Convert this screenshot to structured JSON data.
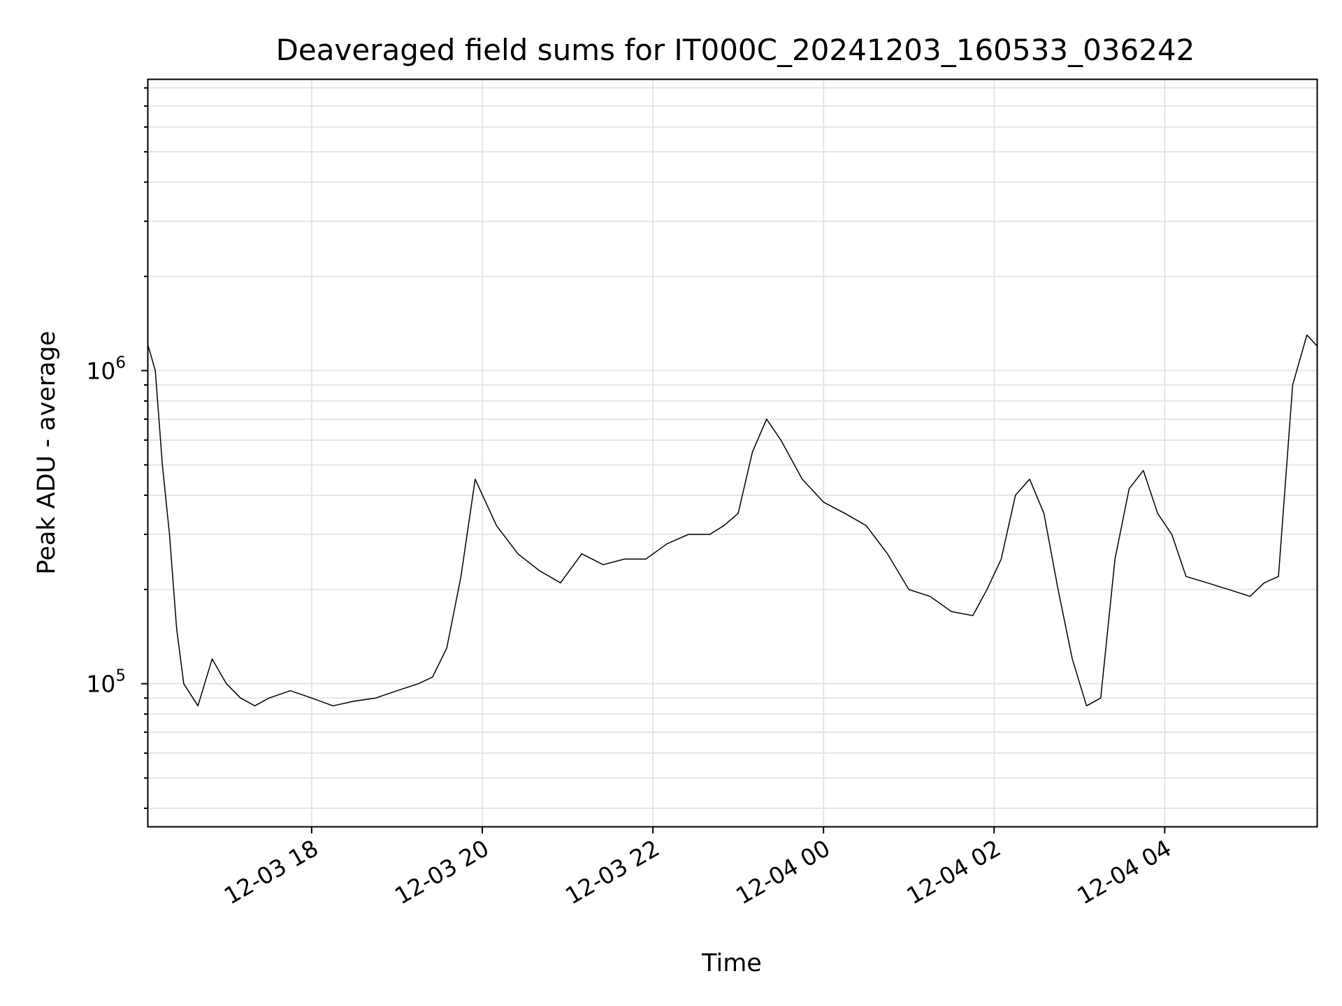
{
  "chart_data": {
    "type": "line",
    "title": "Deaveraged field sums for IT000C_20241203_160533_036242",
    "xlabel": "Time",
    "ylabel": "Peak ADU - average",
    "yscale": "log",
    "grid": true,
    "line_color": "#000000",
    "grid_color": "#e5e5e5",
    "xlim": [
      "2024-12-03 16:05",
      "2024-12-04 05:47"
    ],
    "ylim": [
      35000,
      8500000
    ],
    "x_ticks": [
      {
        "t": "2024-12-03 18:00",
        "label": "12-03 18"
      },
      {
        "t": "2024-12-03 20:00",
        "label": "12-03 20"
      },
      {
        "t": "2024-12-03 22:00",
        "label": "12-03 22"
      },
      {
        "t": "2024-12-04 00:00",
        "label": "12-04 00"
      },
      {
        "t": "2024-12-04 02:00",
        "label": "12-04 02"
      },
      {
        "t": "2024-12-04 04:00",
        "label": "12-04 04"
      }
    ],
    "y_ticks": [
      {
        "value": 100000,
        "base": "10",
        "exp": "5"
      },
      {
        "value": 1000000,
        "base": "10",
        "exp": "6"
      }
    ],
    "series": [
      {
        "x": [
          "2024-12-03 16:05",
          "2024-12-03 16:10",
          "2024-12-03 16:15",
          "2024-12-03 16:20",
          "2024-12-03 16:25",
          "2024-12-03 16:30",
          "2024-12-03 16:40",
          "2024-12-03 16:50",
          "2024-12-03 17:00",
          "2024-12-03 17:10",
          "2024-12-03 17:20",
          "2024-12-03 17:30",
          "2024-12-03 17:45",
          "2024-12-03 18:00",
          "2024-12-03 18:15",
          "2024-12-03 18:30",
          "2024-12-03 18:45",
          "2024-12-03 19:00",
          "2024-12-03 19:15",
          "2024-12-03 19:25",
          "2024-12-03 19:35",
          "2024-12-03 19:45",
          "2024-12-03 19:55",
          "2024-12-03 20:10",
          "2024-12-03 20:25",
          "2024-12-03 20:40",
          "2024-12-03 20:55",
          "2024-12-03 21:10",
          "2024-12-03 21:25",
          "2024-12-03 21:40",
          "2024-12-03 21:55",
          "2024-12-03 22:10",
          "2024-12-03 22:25",
          "2024-12-03 22:40",
          "2024-12-03 22:50",
          "2024-12-03 23:00",
          "2024-12-03 23:10",
          "2024-12-03 23:20",
          "2024-12-03 23:30",
          "2024-12-03 23:45",
          "2024-12-04 00:00",
          "2024-12-04 00:15",
          "2024-12-04 00:30",
          "2024-12-04 00:45",
          "2024-12-04 01:00",
          "2024-12-04 01:15",
          "2024-12-04 01:30",
          "2024-12-04 01:45",
          "2024-12-04 01:55",
          "2024-12-04 02:05",
          "2024-12-04 02:15",
          "2024-12-04 02:25",
          "2024-12-04 02:35",
          "2024-12-04 02:45",
          "2024-12-04 02:55",
          "2024-12-04 03:05",
          "2024-12-04 03:15",
          "2024-12-04 03:25",
          "2024-12-04 03:35",
          "2024-12-04 03:45",
          "2024-12-04 03:55",
          "2024-12-04 04:05",
          "2024-12-04 04:15",
          "2024-12-04 04:30",
          "2024-12-04 04:45",
          "2024-12-04 05:00",
          "2024-12-04 05:10",
          "2024-12-04 05:20",
          "2024-12-04 05:30",
          "2024-12-04 05:40",
          "2024-12-04 05:47"
        ],
        "y": [
          1200000,
          1000000,
          500000,
          300000,
          150000,
          100000,
          85000,
          120000,
          100000,
          90000,
          85000,
          90000,
          95000,
          90000,
          85000,
          88000,
          90000,
          95000,
          100000,
          105000,
          130000,
          220000,
          450000,
          320000,
          260000,
          230000,
          210000,
          260000,
          240000,
          250000,
          250000,
          280000,
          300000,
          300000,
          320000,
          350000,
          550000,
          700000,
          600000,
          450000,
          380000,
          350000,
          320000,
          260000,
          200000,
          190000,
          170000,
          165000,
          200000,
          250000,
          400000,
          450000,
          350000,
          200000,
          120000,
          85000,
          90000,
          250000,
          420000,
          480000,
          350000,
          300000,
          220000,
          210000,
          200000,
          190000,
          210000,
          220000,
          900000,
          1300000,
          1200000
        ]
      }
    ]
  }
}
